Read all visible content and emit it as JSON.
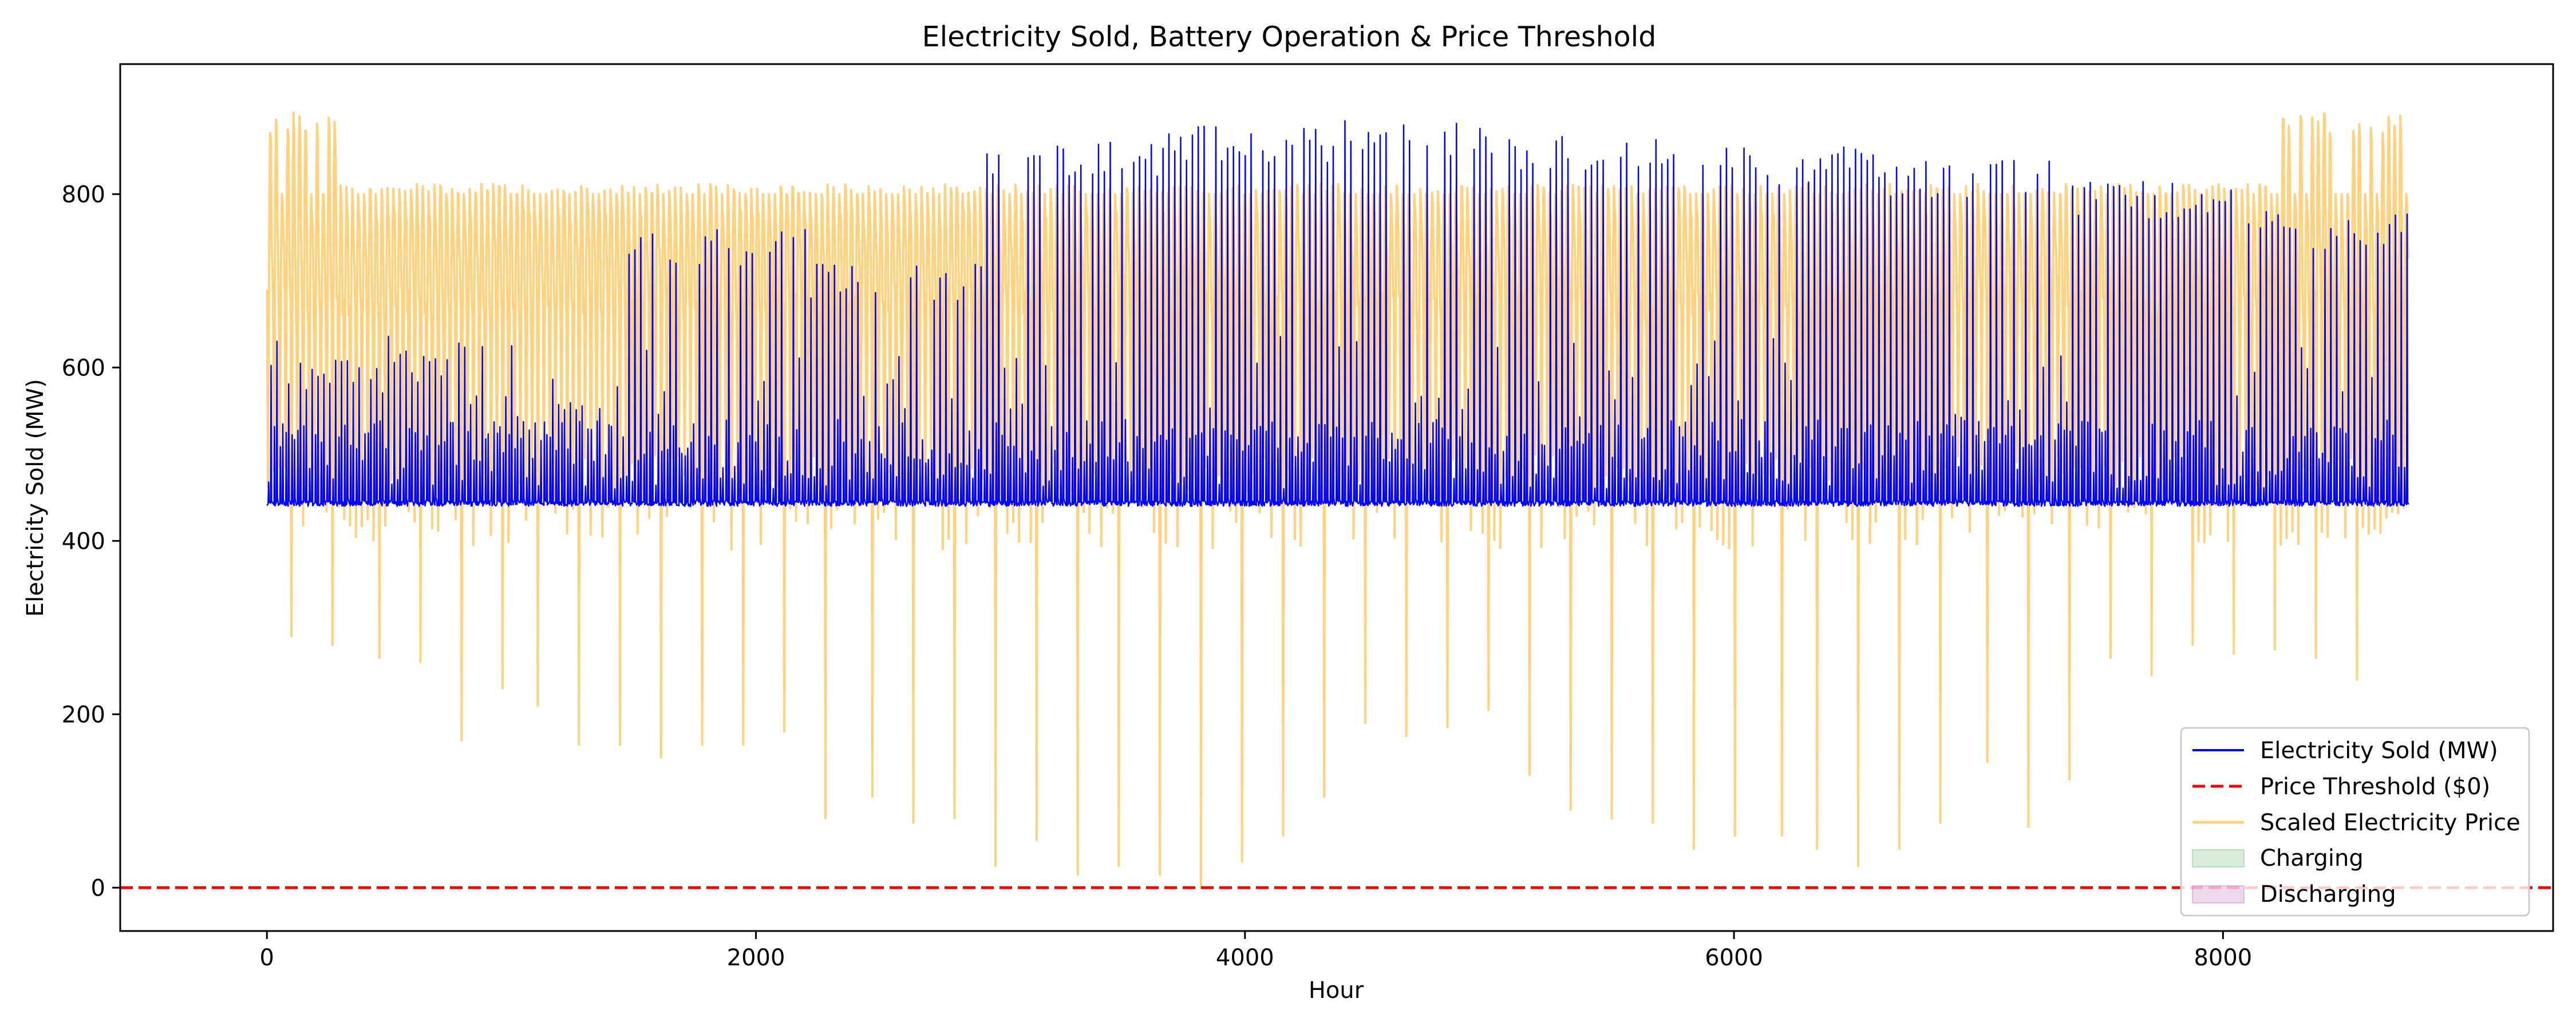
{
  "chart_data": {
    "type": "line",
    "title": "Electricity Sold, Battery Operation & Price Threshold",
    "xlabel": "Hour",
    "ylabel": "Electricity Sold (MW)",
    "xlim": [
      -600,
      9350
    ],
    "ylim": [
      -50,
      950
    ],
    "xticks": [
      0,
      2000,
      4000,
      6000,
      8000
    ],
    "yticks": [
      0,
      200,
      400,
      600,
      800
    ],
    "grid": false,
    "legend_placement": "lower-right",
    "n_hours": 8760,
    "series": [
      {
        "name": "Electricity Sold (MW)",
        "kind": "line",
        "color": "#0000ff",
        "baseline_mw": 440,
        "daily_peak_by_month_mw": [
          620,
          560,
          760,
          720,
          860,
          880,
          885,
          870,
          855,
          840,
          815,
          780,
          540
        ]
      },
      {
        "name": "Price Threshold ($0)",
        "kind": "hline",
        "color": "#ff0000",
        "style": "dashed",
        "value": 0
      },
      {
        "name": "Scaled Electricity Price",
        "kind": "line",
        "color": "#ffa500",
        "alpha": 0.5,
        "typical_range": [
          400,
          800
        ],
        "peak_max": 895,
        "daily_dips": [
          [
            100,
            290
          ],
          [
            270,
            280
          ],
          [
            450,
            265
          ],
          [
            620,
            260
          ],
          [
            790,
            170
          ],
          [
            950,
            230
          ],
          [
            1110,
            210
          ],
          [
            1280,
            165
          ],
          [
            1450,
            165
          ],
          [
            1610,
            150
          ],
          [
            1780,
            165
          ],
          [
            1950,
            165
          ],
          [
            2120,
            180
          ],
          [
            2290,
            80
          ],
          [
            2460,
            105
          ],
          [
            2630,
            75
          ],
          [
            2800,
            80
          ],
          [
            2970,
            25
          ],
          [
            3140,
            55
          ],
          [
            3310,
            15
          ],
          [
            3470,
            25
          ],
          [
            3640,
            15
          ],
          [
            3810,
            0
          ],
          [
            3980,
            30
          ],
          [
            4150,
            60
          ],
          [
            4320,
            105
          ],
          [
            4480,
            190
          ],
          [
            4650,
            175
          ],
          [
            4820,
            185
          ],
          [
            4990,
            205
          ],
          [
            5160,
            130
          ],
          [
            5330,
            90
          ],
          [
            5500,
            80
          ],
          [
            5670,
            75
          ],
          [
            5840,
            45
          ],
          [
            6010,
            60
          ],
          [
            6180,
            60
          ],
          [
            6340,
            45
          ],
          [
            6510,
            25
          ],
          [
            6680,
            45
          ],
          [
            6850,
            75
          ],
          [
            7020,
            145
          ],
          [
            7190,
            70
          ],
          [
            7360,
            125
          ],
          [
            7530,
            265
          ],
          [
            7700,
            245
          ],
          [
            7870,
            280
          ],
          [
            8040,
            270
          ],
          [
            8210,
            275
          ],
          [
            8380,
            265
          ],
          [
            8550,
            240
          ]
        ]
      },
      {
        "name": "Charging",
        "kind": "fill",
        "color": "#008000",
        "alpha": 0.15
      },
      {
        "name": "Discharging",
        "kind": "fill",
        "color": "#800080",
        "alpha": 0.15
      }
    ]
  }
}
